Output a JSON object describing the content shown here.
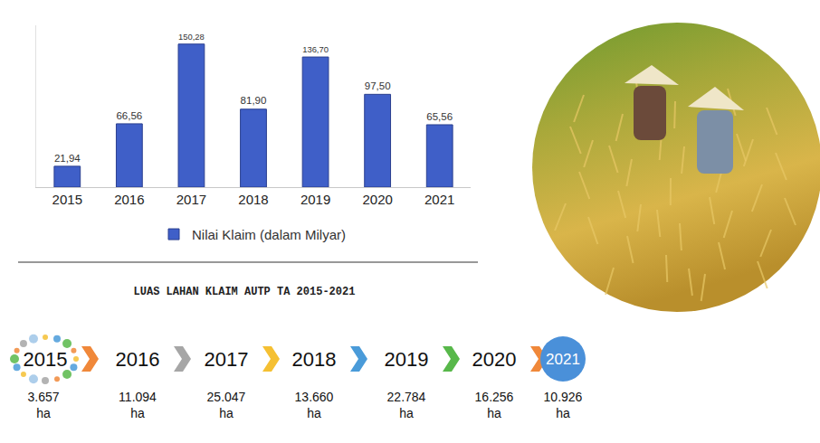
{
  "chart_data": {
    "type": "bar",
    "categories": [
      "2015",
      "2016",
      "2017",
      "2018",
      "2019",
      "2020",
      "2021"
    ],
    "series": [
      {
        "name": "Nilai Klaim (dalam Milyar)",
        "color": "#3f5fc8",
        "values": [
          21.94,
          66.56,
          150.28,
          81.9,
          136.7,
          97.5,
          65.56
        ],
        "value_labels": [
          "21,94",
          "66,56",
          "150,28",
          "81,90",
          "136,70",
          "97,50",
          "65,56"
        ]
      }
    ],
    "ylim": [
      0,
      170
    ],
    "tick_labels": "x",
    "data_labels": true,
    "legend": "bottom",
    "grid": false
  },
  "timeline": {
    "title": "LUAS LAHAN KLAIM AUTP TA 2015-2021",
    "items": [
      {
        "year": "2015",
        "area": "3.657 ha"
      },
      {
        "year": "2016",
        "area": "11.094 ha"
      },
      {
        "year": "2017",
        "area": "25.047 ha"
      },
      {
        "year": "2018",
        "area": "13.660 ha"
      },
      {
        "year": "2019",
        "area": "22.784 ha"
      },
      {
        "year": "2020",
        "area": "16.256 ha"
      },
      {
        "year": "2021",
        "area": "10.926 ha"
      }
    ]
  }
}
